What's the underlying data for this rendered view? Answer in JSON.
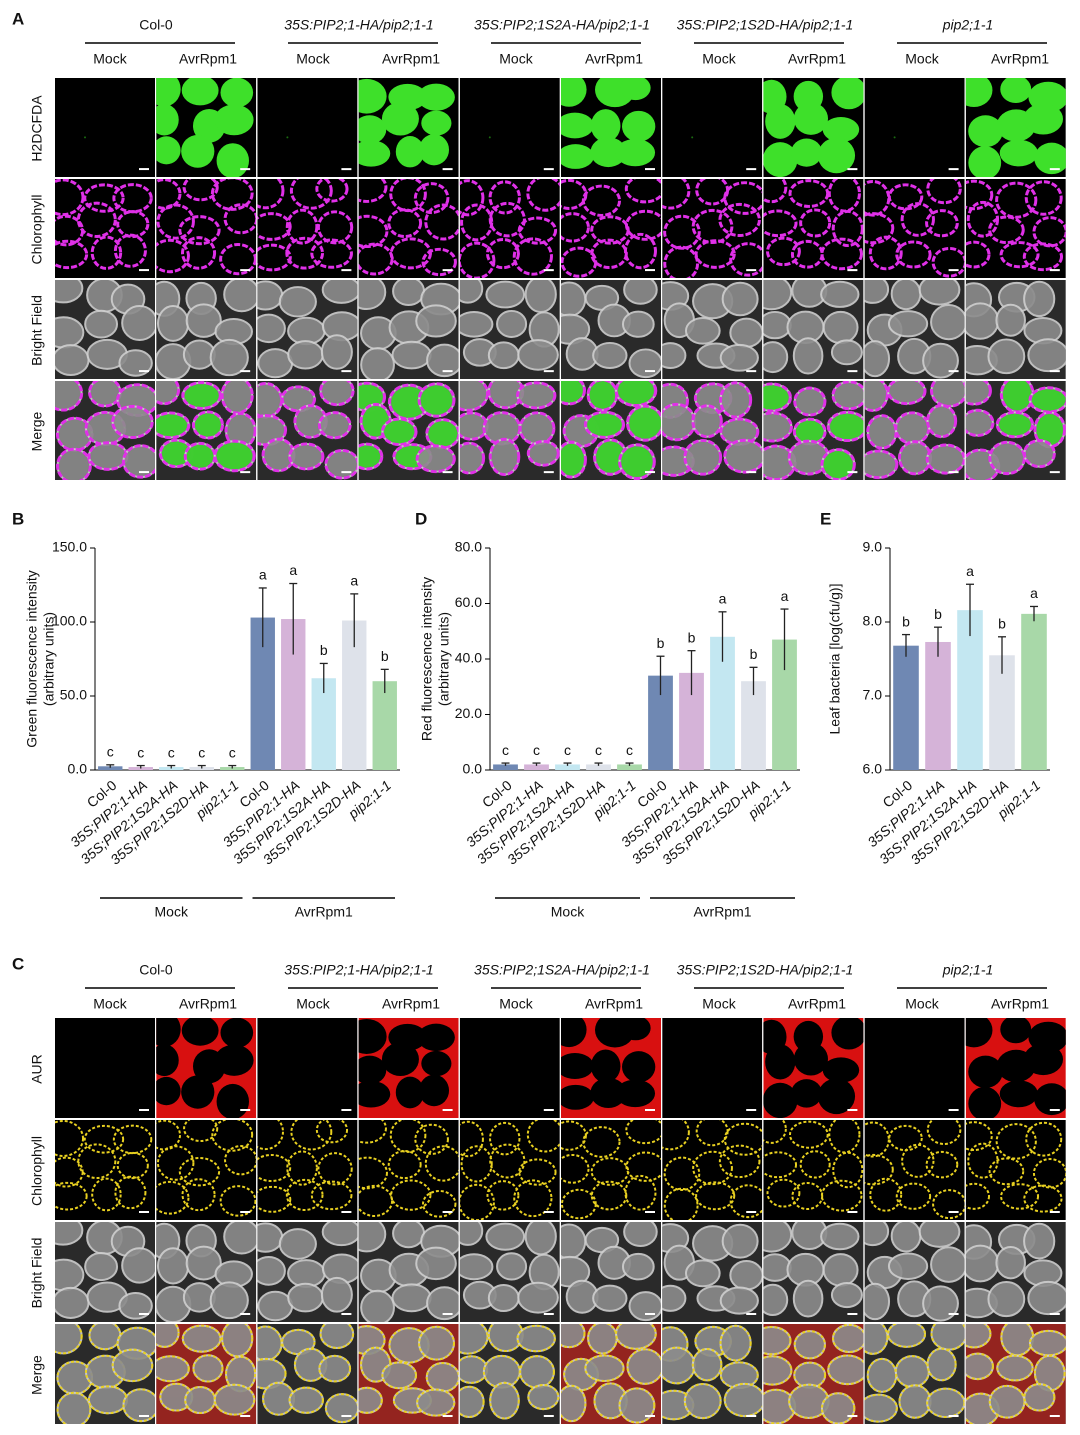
{
  "panel_a": {
    "label": "A",
    "groups": [
      "Col-0",
      "35S:PIP2;1-HA/pip2;1-1",
      "35S:PIP2;1S2A-HA/pip2;1-1",
      "35S:PIP2;1S2D-HA/pip2;1-1",
      "pip2;1-1"
    ],
    "conditions": [
      "Mock",
      "AvrRpm1"
    ],
    "rows": [
      "H2DCFDA",
      "Chlorophyll",
      "Bright Field",
      "Merge"
    ]
  },
  "panel_c": {
    "label": "C",
    "groups": [
      "Col-0",
      "35S:PIP2;1-HA/pip2;1-1",
      "35S:PIP2;1S2A-HA/pip2;1-1",
      "35S:PIP2;1S2D-HA/pip2;1-1",
      "pip2;1-1"
    ],
    "conditions": [
      "Mock",
      "AvrRpm1"
    ],
    "rows": [
      "AUR",
      "Chlorophyll",
      "Bright Field",
      "Merge"
    ]
  },
  "chart_data": [
    {
      "panel": "B",
      "type": "bar",
      "ylabel": [
        "Green fluorescence intensity",
        "(arbitrary units)"
      ],
      "categories": [
        "Col-0",
        "35S;PIP2;1-HA",
        "35S;PIP2;1S2A-HA",
        "35S;PIP2;1S2D-HA",
        "pip2;1-1",
        "Col-0",
        "35S;PIP2;1-HA",
        "35S;PIP2;1S2A-HA",
        "35S;PIP2;1S2D-HA",
        "pip2;1-1"
      ],
      "values": [
        2.5,
        2.0,
        2.0,
        2.0,
        2.0,
        103,
        102,
        62,
        101,
        60
      ],
      "errors": [
        1.0,
        1.0,
        1.0,
        1.0,
        1.0,
        20,
        24,
        10,
        18,
        8
      ],
      "annotations": [
        "c",
        "c",
        "c",
        "c",
        "c",
        "a",
        "a",
        "b",
        "a",
        "b"
      ],
      "colors": [
        "#6f88b3",
        "#d5b3d8",
        "#c3e7f1",
        "#dee2ea",
        "#a8d8a8",
        "#6f88b3",
        "#d5b3d8",
        "#c3e7f1",
        "#dee2ea",
        "#a8d8a8"
      ],
      "group_labels": [
        "Mock",
        "AvrRpm1"
      ],
      "ylim": [
        0,
        150
      ],
      "yticks": [
        {
          "value": 0,
          "label": "0.0"
        },
        {
          "value": 50,
          "label": "50.0"
        },
        {
          "value": 100,
          "label": "100.0"
        },
        {
          "value": 150,
          "label": "150.0"
        }
      ]
    },
    {
      "panel": "D",
      "type": "bar",
      "ylabel": [
        "Red fluorescence intensity",
        "(arbitrary units)"
      ],
      "categories": [
        "Col-0",
        "35S;PIP2;1-HA",
        "35S;PIP2;1S2A-HA",
        "35S;PIP2;1S2D-HA",
        "pip2;1-1",
        "Col-0",
        "35S;PIP2;1-HA",
        "35S;PIP2;1S2A-HA",
        "35S;PIP2;1S2D-HA",
        "pip2;1-1"
      ],
      "values": [
        2.0,
        2.0,
        2.0,
        2.0,
        2.0,
        34,
        35,
        48,
        32,
        47
      ],
      "errors": [
        0.5,
        0.5,
        0.5,
        0.5,
        0.5,
        7,
        8,
        9,
        5,
        11
      ],
      "annotations": [
        "c",
        "c",
        "c",
        "c",
        "c",
        "b",
        "b",
        "a",
        "b",
        "a"
      ],
      "colors": [
        "#6f88b3",
        "#d5b3d8",
        "#c3e7f1",
        "#dee2ea",
        "#a8d8a8",
        "#6f88b3",
        "#d5b3d8",
        "#c3e7f1",
        "#dee2ea",
        "#a8d8a8"
      ],
      "group_labels": [
        "Mock",
        "AvrRpm1"
      ],
      "ylim": [
        0,
        80
      ],
      "yticks": [
        {
          "value": 0,
          "label": "0.0"
        },
        {
          "value": 20,
          "label": "20.0"
        },
        {
          "value": 40,
          "label": "40.0"
        },
        {
          "value": 60,
          "label": "60.0"
        },
        {
          "value": 80,
          "label": "80.0"
        }
      ]
    },
    {
      "panel": "E",
      "type": "bar",
      "ylabel": [
        "Leaf bacteria [log(cfu/g)]"
      ],
      "categories": [
        "Col-0",
        "35S;PIP2;1-HA",
        "35S;PIP2;1S2A-HA",
        "35S;PIP2;1S2D-HA",
        "pip2;1-1"
      ],
      "values": [
        7.68,
        7.73,
        8.16,
        7.55,
        8.11
      ],
      "errors": [
        0.15,
        0.2,
        0.35,
        0.25,
        0.1
      ],
      "annotations": [
        "b",
        "b",
        "a",
        "b",
        "a"
      ],
      "colors": [
        "#6f88b3",
        "#d5b3d8",
        "#c3e7f1",
        "#dee2ea",
        "#a8d8a8"
      ],
      "ylim": [
        6,
        9
      ],
      "yticks": [
        {
          "value": 6,
          "label": "6.0"
        },
        {
          "value": 7,
          "label": "7.0"
        },
        {
          "value": 8,
          "label": "8.0"
        },
        {
          "value": 9,
          "label": "9.0"
        }
      ]
    }
  ]
}
